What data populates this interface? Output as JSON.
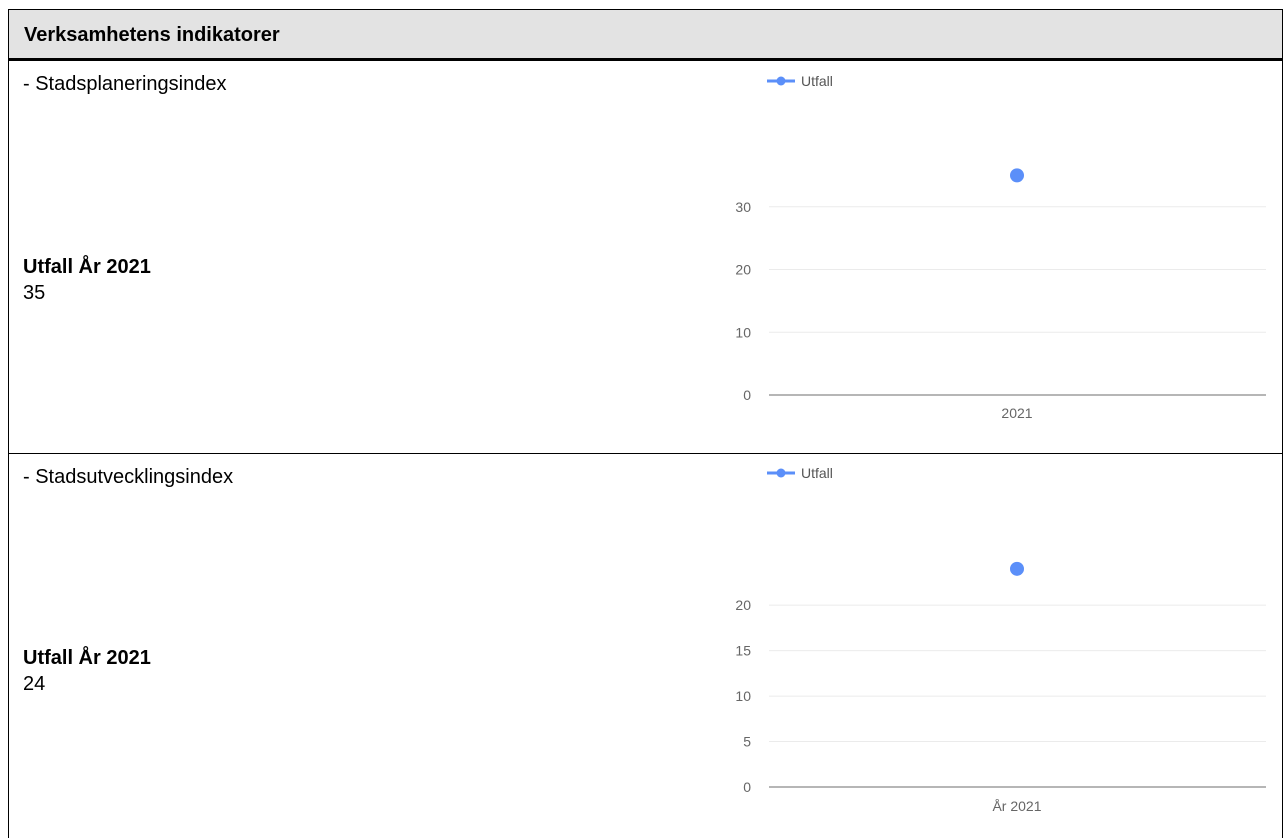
{
  "header": {
    "title": "Verksamhetens indikatorer"
  },
  "indicators": [
    {
      "name": "- Stadsplaneringsindex",
      "result_label": "Utfall År 2021",
      "result_value": "35",
      "chart_data": {
        "type": "scatter",
        "legend": [
          "Utfall"
        ],
        "legend_position": "top-left",
        "categories": [
          "2021"
        ],
        "series": [
          {
            "name": "Utfall",
            "values": [
              35
            ],
            "color": "#5b8ff9"
          }
        ],
        "y_ticks": [
          "0",
          "10",
          "20",
          "30"
        ],
        "ylim": [
          0,
          40
        ],
        "grid": true
      }
    },
    {
      "name": "- Stadsutvecklingsindex",
      "result_label": "Utfall År 2021",
      "result_value": "24",
      "chart_data": {
        "type": "scatter",
        "legend": [
          "Utfall"
        ],
        "legend_position": "top-left",
        "categories": [
          "År 2021"
        ],
        "series": [
          {
            "name": "Utfall",
            "values": [
              24
            ],
            "color": "#5b8ff9"
          }
        ],
        "y_ticks": [
          "0",
          "5",
          "10",
          "15",
          "20"
        ],
        "ylim": [
          0,
          27.5
        ],
        "grid": true
      }
    }
  ]
}
